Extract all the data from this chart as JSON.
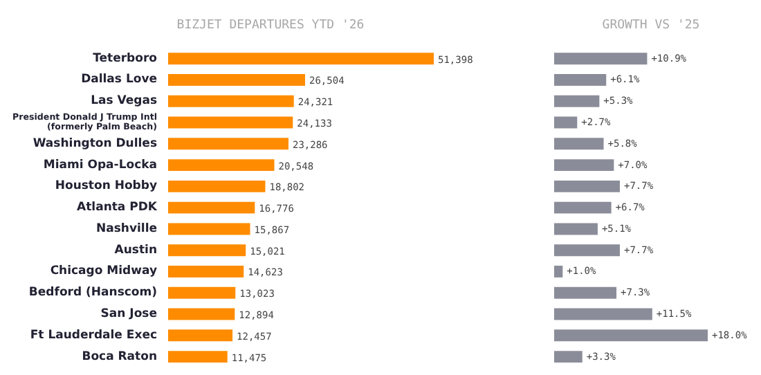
{
  "chart_data": [
    {
      "type": "bar",
      "orientation": "horizontal",
      "title": "BIZJET DEPARTURES YTD '26",
      "categories": [
        "Teterboro",
        "Dallas Love",
        "Las Vegas",
        "President Donald J Trump Intl (formerly Palm Beach)",
        "Washington Dulles",
        "Miami Opa-Locka",
        "Houston Hobby",
        "Atlanta PDK",
        "Nashville",
        "Austin",
        "Chicago Midway",
        "Bedford (Hanscom)",
        "San Jose",
        "Ft Lauderdale Exec",
        "Boca Raton"
      ],
      "values": [
        51398,
        26504,
        24321,
        24133,
        23286,
        20548,
        18802,
        16776,
        15867,
        15021,
        14623,
        13023,
        12894,
        12457,
        11475
      ],
      "value_labels": [
        "51,398",
        "26,504",
        "24,321",
        "24,133",
        "23,286",
        "20,548",
        "18,802",
        "16,776",
        "15,867",
        "15,021",
        "14,623",
        "13,023",
        "12,894",
        "12,457",
        "11,475"
      ],
      "color": "#ff8c00",
      "grid": false
    },
    {
      "type": "bar",
      "orientation": "horizontal",
      "title": "GROWTH VS '25",
      "tick_labels": false,
      "categories": [
        "Teterboro",
        "Dallas Love",
        "Las Vegas",
        "President Donald J Trump Intl (formerly Palm Beach)",
        "Washington Dulles",
        "Miami Opa-Locka",
        "Houston Hobby",
        "Atlanta PDK",
        "Nashville",
        "Austin",
        "Chicago Midway",
        "Bedford (Hanscom)",
        "San Jose",
        "Ft Lauderdale Exec",
        "Boca Raton"
      ],
      "values": [
        10.9,
        6.1,
        5.3,
        2.7,
        5.8,
        7.0,
        7.7,
        6.7,
        5.1,
        7.7,
        1.0,
        7.3,
        11.5,
        18.0,
        3.3
      ],
      "value_labels": [
        "+10.9%",
        "+6.1%",
        "+5.3%",
        "+2.7%",
        "+5.8%",
        "+7.0%",
        "+7.7%",
        "+6.7%",
        "+5.1%",
        "+7.7%",
        "+1.0%",
        "+7.3%",
        "+11.5%",
        "+18.0%",
        "+3.3%"
      ],
      "color": "#8a8d99",
      "grid": false
    }
  ]
}
